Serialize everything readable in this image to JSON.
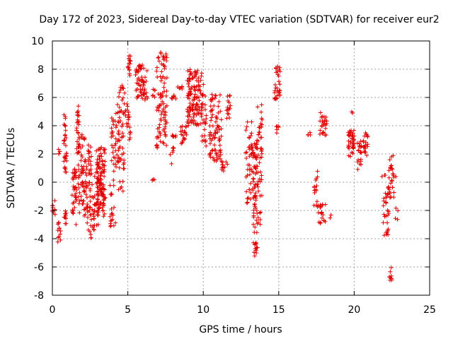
{
  "chart_data": {
    "type": "scatter",
    "title": "Day 172 of 2023, Sidereal Day-to-day VTEC variation (SDTVAR) for receiver eur2",
    "xlabel": "GPS time / hours",
    "ylabel": "SDTVAR / TECUs",
    "xlim": [
      0,
      25
    ],
    "ylim": [
      -8,
      10
    ],
    "xticks": [
      0,
      5,
      10,
      15,
      20,
      25
    ],
    "yticks": [
      -8,
      -6,
      -4,
      -2,
      0,
      2,
      4,
      6,
      8,
      10
    ],
    "xtick_labels": [
      "0",
      "5",
      "10",
      "15",
      "20",
      "25"
    ],
    "ytick_labels": [
      "-8",
      "-6",
      "-4",
      "-2",
      "0",
      "2",
      "4",
      "6",
      "8",
      "10"
    ],
    "grid": true,
    "marker": "+",
    "color": "#e00000",
    "clusters": [
      {
        "x_start": 0.0,
        "x_end": 0.2,
        "y_min": -2.4,
        "y_max": -1.2,
        "n": 10
      },
      {
        "x_start": 0.35,
        "x_end": 0.55,
        "y_min": -4.3,
        "y_max": -2.5,
        "n": 12
      },
      {
        "x_start": 0.4,
        "x_end": 0.5,
        "y_min": 2.0,
        "y_max": 2.5,
        "n": 4
      },
      {
        "x_start": 0.75,
        "x_end": 0.95,
        "y_min": 0.5,
        "y_max": 5.0,
        "n": 30
      },
      {
        "x_start": 0.75,
        "x_end": 0.95,
        "y_min": -3.4,
        "y_max": -2.0,
        "n": 10
      },
      {
        "x_start": 1.3,
        "x_end": 1.6,
        "y_min": -3.0,
        "y_max": 1.0,
        "n": 35
      },
      {
        "x_start": 1.6,
        "x_end": 1.8,
        "y_min": 2.0,
        "y_max": 5.5,
        "n": 25
      },
      {
        "x_start": 1.7,
        "x_end": 2.3,
        "y_min": -2.5,
        "y_max": 3.4,
        "n": 70
      },
      {
        "x_start": 2.3,
        "x_end": 2.6,
        "y_min": -4.0,
        "y_max": 3.0,
        "n": 45
      },
      {
        "x_start": 2.6,
        "x_end": 3.1,
        "y_min": -3.5,
        "y_max": 0.5,
        "n": 30
      },
      {
        "x_start": 2.9,
        "x_end": 3.5,
        "y_min": -2.2,
        "y_max": 2.5,
        "n": 80
      },
      {
        "x_start": 3.0,
        "x_end": 3.5,
        "y_min": -2.5,
        "y_max": 1.5,
        "n": 40
      },
      {
        "x_start": 3.8,
        "x_end": 4.2,
        "y_min": -3.4,
        "y_max": 0.5,
        "n": 20
      },
      {
        "x_start": 3.9,
        "x_end": 4.3,
        "y_min": 0.5,
        "y_max": 5.0,
        "n": 30
      },
      {
        "x_start": 4.3,
        "x_end": 4.8,
        "y_min": -1.0,
        "y_max": 6.9,
        "n": 60
      },
      {
        "x_start": 4.8,
        "x_end": 5.2,
        "y_min": 2.7,
        "y_max": 6.0,
        "n": 20
      },
      {
        "x_start": 5.0,
        "x_end": 5.2,
        "y_min": 7.5,
        "y_max": 9.0,
        "n": 15
      },
      {
        "x_start": 5.5,
        "x_end": 6.3,
        "y_min": 5.8,
        "y_max": 8.3,
        "n": 60
      },
      {
        "x_start": 6.6,
        "x_end": 6.8,
        "y_min": 5.9,
        "y_max": 6.6,
        "n": 6
      },
      {
        "x_start": 6.6,
        "x_end": 6.8,
        "y_min": 0.0,
        "y_max": 0.2,
        "n": 3
      },
      {
        "x_start": 6.9,
        "x_end": 7.6,
        "y_min": 2.4,
        "y_max": 9.2,
        "n": 90
      },
      {
        "x_start": 7.9,
        "x_end": 8.2,
        "y_min": 3.1,
        "y_max": 3.4,
        "n": 6
      },
      {
        "x_start": 7.9,
        "x_end": 8.2,
        "y_min": 5.9,
        "y_max": 6.2,
        "n": 6
      },
      {
        "x_start": 7.8,
        "x_end": 8.1,
        "y_min": 0.9,
        "y_max": 2.5,
        "n": 8
      },
      {
        "x_start": 8.3,
        "x_end": 8.6,
        "y_min": 6.6,
        "y_max": 7.0,
        "n": 6
      },
      {
        "x_start": 8.5,
        "x_end": 9.0,
        "y_min": 2.7,
        "y_max": 4.3,
        "n": 20
      },
      {
        "x_start": 8.9,
        "x_end": 9.9,
        "y_min": 4.0,
        "y_max": 8.0,
        "n": 120
      },
      {
        "x_start": 9.9,
        "x_end": 10.2,
        "y_min": 2.5,
        "y_max": 7.0,
        "n": 25
      },
      {
        "x_start": 10.4,
        "x_end": 11.2,
        "y_min": 1.5,
        "y_max": 6.3,
        "n": 80
      },
      {
        "x_start": 11.2,
        "x_end": 11.6,
        "y_min": 0.7,
        "y_max": 1.6,
        "n": 12
      },
      {
        "x_start": 11.4,
        "x_end": 11.8,
        "y_min": 4.5,
        "y_max": 6.2,
        "n": 15
      },
      {
        "x_start": 12.8,
        "x_end": 13.3,
        "y_min": -1.5,
        "y_max": 4.5,
        "n": 45
      },
      {
        "x_start": 13.3,
        "x_end": 13.6,
        "y_min": -5.3,
        "y_max": 3.0,
        "n": 70
      },
      {
        "x_start": 13.6,
        "x_end": 13.9,
        "y_min": -3.0,
        "y_max": 6.0,
        "n": 45
      },
      {
        "x_start": 14.7,
        "x_end": 15.1,
        "y_min": 5.8,
        "y_max": 8.2,
        "n": 30
      },
      {
        "x_start": 14.8,
        "x_end": 15.0,
        "y_min": 3.2,
        "y_max": 4.0,
        "n": 6
      },
      {
        "x_start": 16.9,
        "x_end": 17.1,
        "y_min": 3.3,
        "y_max": 3.6,
        "n": 4
      },
      {
        "x_start": 17.3,
        "x_end": 17.6,
        "y_min": -1.8,
        "y_max": 0.8,
        "n": 15
      },
      {
        "x_start": 17.6,
        "x_end": 18.1,
        "y_min": -3.0,
        "y_max": -1.5,
        "n": 20
      },
      {
        "x_start": 17.7,
        "x_end": 18.2,
        "y_min": 3.3,
        "y_max": 5.0,
        "n": 25
      },
      {
        "x_start": 18.3,
        "x_end": 18.5,
        "y_min": -2.6,
        "y_max": -2.3,
        "n": 2
      },
      {
        "x_start": 19.6,
        "x_end": 20.0,
        "y_min": 1.8,
        "y_max": 3.7,
        "n": 40
      },
      {
        "x_start": 19.8,
        "x_end": 19.9,
        "y_min": 4.8,
        "y_max": 5.0,
        "n": 2
      },
      {
        "x_start": 20.2,
        "x_end": 20.5,
        "y_min": 0.7,
        "y_max": 3.0,
        "n": 20
      },
      {
        "x_start": 20.6,
        "x_end": 20.9,
        "y_min": 1.9,
        "y_max": 3.5,
        "n": 20
      },
      {
        "x_start": 21.8,
        "x_end": 22.1,
        "y_min": 0.4,
        "y_max": 0.7,
        "n": 3
      },
      {
        "x_start": 21.9,
        "x_end": 22.3,
        "y_min": -3.8,
        "y_max": -0.3,
        "n": 30
      },
      {
        "x_start": 22.3,
        "x_end": 22.6,
        "y_min": -1.5,
        "y_max": 1.9,
        "n": 25
      },
      {
        "x_start": 22.3,
        "x_end": 22.5,
        "y_min": -7.0,
        "y_max": -6.0,
        "n": 8
      },
      {
        "x_start": 22.6,
        "x_end": 22.9,
        "y_min": -2.7,
        "y_max": 0.9,
        "n": 8
      }
    ]
  }
}
